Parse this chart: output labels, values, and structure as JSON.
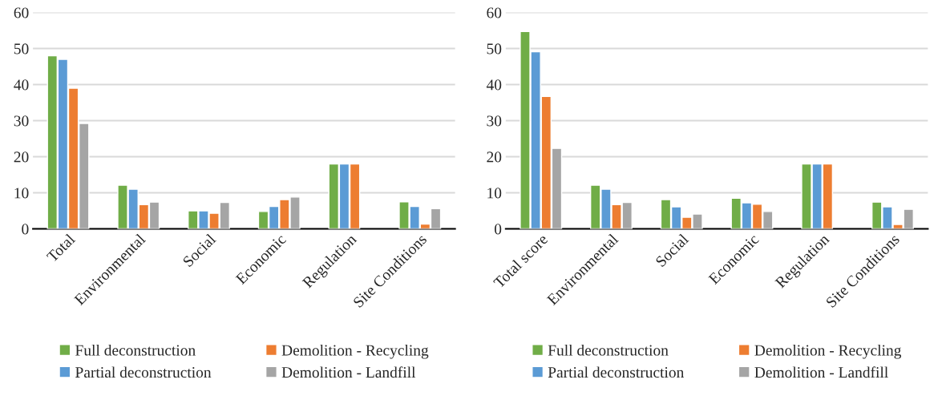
{
  "chart_data": [
    {
      "type": "bar",
      "categories": [
        "Total",
        "Environmental",
        "Social",
        "Economic",
        "Regulation",
        "Site Conditions"
      ],
      "series": [
        {
          "name": "Full deconstruction",
          "color": "#70ad47",
          "values": [
            48,
            12.1,
            5,
            4.8,
            18,
            7.5
          ]
        },
        {
          "name": "Partial deconstruction",
          "color": "#5b9bd5",
          "values": [
            47,
            11,
            5,
            6.2,
            18,
            6.2
          ]
        },
        {
          "name": "Demolition - Recycling",
          "color": "#ed7d31",
          "values": [
            39,
            6.7,
            4.3,
            8.1,
            18,
            1.3
          ]
        },
        {
          "name": "Demolition - Landfill",
          "color": "#a5a5a5",
          "values": [
            29.2,
            7.4,
            7.3,
            8.8,
            null,
            5.6
          ]
        }
      ],
      "ylim": [
        0,
        60
      ],
      "yticks": [
        0,
        10,
        20,
        30,
        40,
        50,
        60
      ],
      "grid": "y",
      "legend": "bottom"
    },
    {
      "type": "bar",
      "categories": [
        "Total score",
        "Environmental",
        "Social",
        "Economic",
        "Regulation",
        "Site Conditions"
      ],
      "series": [
        {
          "name": "Full deconstruction",
          "color": "#70ad47",
          "values": [
            54.7,
            12.1,
            8.1,
            8.5,
            18,
            7.4
          ]
        },
        {
          "name": "Partial deconstruction",
          "color": "#5b9bd5",
          "values": [
            49.1,
            11,
            6.1,
            7.2,
            18,
            6.1
          ]
        },
        {
          "name": "Demolition - Recycling",
          "color": "#ed7d31",
          "values": [
            36.7,
            6.7,
            3.2,
            6.8,
            18,
            1.2
          ]
        },
        {
          "name": "Demolition - Landfill",
          "color": "#a5a5a5",
          "values": [
            22.3,
            7.3,
            4.1,
            4.8,
            null,
            5.4
          ]
        }
      ],
      "ylim": [
        0,
        60
      ],
      "yticks": [
        0,
        10,
        20,
        30,
        40,
        50,
        60
      ],
      "grid": "y",
      "legend": "bottom"
    }
  ]
}
